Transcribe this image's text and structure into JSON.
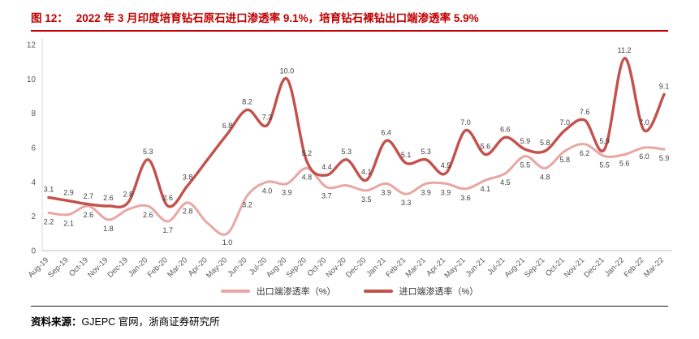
{
  "header": {
    "title_prefix": "图 12：",
    "title": "2022 年 3 月印度培育钻石原石进口渗透率 9.1%，培育钻石裸钻出口端渗透率 5.9%"
  },
  "footer": {
    "source_label": "资料来源：",
    "source_text": "GJEPC 官网，浙商证券研究所"
  },
  "colors": {
    "accent": "#c00000",
    "import_line": "#c3514c",
    "export_line": "#e8a7a3",
    "label_text": "#404040",
    "axis_text": "#595959"
  },
  "chart_data": {
    "type": "line",
    "title": "2022 年 3 月印度培育钻石原石进口渗透率 9.1%，培育钻石裸钻出口端渗透率 5.9%",
    "xlabel": "",
    "ylabel": "",
    "ylim": [
      0,
      12
    ],
    "ytick_step": 2,
    "grid": false,
    "legend_position": "bottom",
    "categories": [
      "Aug-19",
      "Sep-19",
      "Oct-19",
      "Nov-19",
      "Dec-19",
      "Jan-20",
      "Feb-20",
      "Mar-20",
      "Apr-20",
      "May-20",
      "Jun-20",
      "Jul-20",
      "Aug-20",
      "Sep-20",
      "Oct-20",
      "Nov-20",
      "Dec-20",
      "Jan-21",
      "Feb-21",
      "Mar-21",
      "Apr-21",
      "May-21",
      "Jun-21",
      "Jul-21",
      "Aug-21",
      "Sep-21",
      "Oct-21",
      "Nov-21",
      "Dec-21",
      "Jan-22",
      "Feb-22",
      "Mar-22"
    ],
    "series": [
      {
        "name": "出口端渗透率（%）",
        "color_key": "export_line",
        "values": [
          2.2,
          2.1,
          2.6,
          1.8,
          2.4,
          2.6,
          1.7,
          2.8,
          1.6,
          1.0,
          3.2,
          4.0,
          3.9,
          4.8,
          3.7,
          3.8,
          3.5,
          3.9,
          3.3,
          3.9,
          3.9,
          3.6,
          4.1,
          4.5,
          5.5,
          4.8,
          5.8,
          6.2,
          5.5,
          5.6,
          6.0,
          5.9
        ],
        "labels": [
          "2.2",
          "2.1",
          "2.6",
          "1.8",
          null,
          "2.6",
          "1.7",
          "2.8",
          null,
          "1.0",
          "3.2",
          "4.0",
          "3.9",
          "4.8",
          "3.7",
          null,
          "3.5",
          "3.9",
          "3.3",
          "3.9",
          "3.9",
          "3.6",
          "4.1",
          "4.5",
          "5.5",
          "4.8",
          "5.8",
          "6.2",
          "5.5",
          "5.6",
          "6.0",
          "5.9"
        ]
      },
      {
        "name": "进口端渗透率（%）",
        "color_key": "import_line",
        "values": [
          3.1,
          2.9,
          2.7,
          2.6,
          2.8,
          5.3,
          2.6,
          3.8,
          5.3,
          6.8,
          8.2,
          7.3,
          10.0,
          5.2,
          4.4,
          5.3,
          4.1,
          6.4,
          5.1,
          5.3,
          4.5,
          7.0,
          5.6,
          6.6,
          5.9,
          5.8,
          7.0,
          7.6,
          5.9,
          11.2,
          7.0,
          9.1
        ],
        "labels": [
          "3.1",
          "2.9",
          "2.7",
          "2.6",
          "2.8",
          "5.3",
          "2.6",
          "3.8",
          null,
          "6.8",
          "8.2",
          "7.3",
          "10.0",
          "5.2",
          "4.4",
          "5.3",
          "4.1",
          "6.4",
          "5.1",
          "5.3",
          "4.5",
          "7.0",
          "5.6",
          "6.6",
          "5.9",
          "5.8",
          "7.0",
          "7.6",
          "5.9",
          "11.2",
          "7.0",
          "9.1"
        ]
      }
    ]
  }
}
